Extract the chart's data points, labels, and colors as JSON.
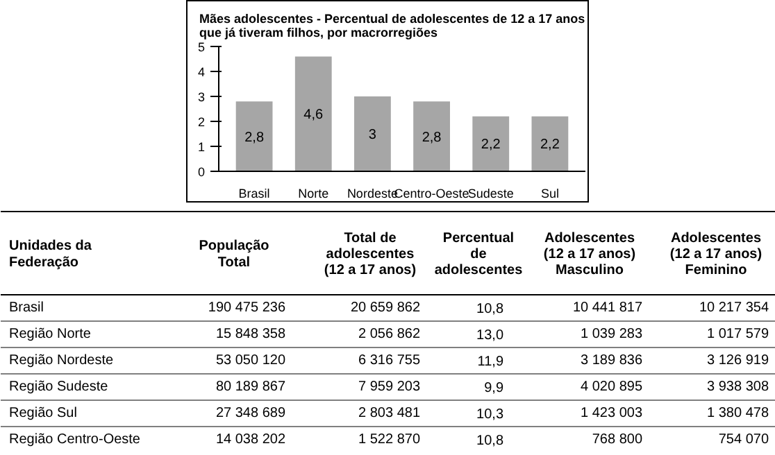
{
  "chart_data": [
    {
      "type": "bar",
      "title": "Mães adolescentes - Percentual de adolescentes de 12 a 17 anos\nque já tiveram filhos, por macrorregiões",
      "categories": [
        "Brasil",
        "Norte",
        "Nordeste",
        "Centro-Oeste",
        "Sudeste",
        "Sul"
      ],
      "values": [
        2.8,
        4.6,
        3,
        2.8,
        2.2,
        2.2
      ],
      "value_labels": [
        "2,8",
        "4,6",
        "3",
        "2,8",
        "2,2",
        "2,2"
      ],
      "color": "#a6a6a6",
      "ylim": [
        0,
        5
      ],
      "yticks": [
        0,
        1,
        2,
        3,
        4,
        5
      ],
      "grid": false
    },
    {
      "type": "other",
      "categories": [
        "Unidades da\nFederação",
        "População\nTotal",
        "Total de\nadolescentes\n(12 a 17 anos)",
        "Percentual\nde\nadolescentes",
        "Adolescentes\n(12 a 17 anos)\nMasculino",
        "Adolescentes\n(12 a 17 anos)\nFeminino"
      ],
      "cell_labels": [
        [
          "Brasil",
          "190 475 236",
          "20 659 862",
          "10,8",
          "10 441 817",
          "10 217 354"
        ],
        [
          "Região Norte",
          "15 848 358",
          "2 056 862",
          "13,0",
          "1 039 283",
          "1 017 579"
        ],
        [
          "Região Nordeste",
          "53 050 120",
          "6 316 755",
          "11,9",
          "3 189 836",
          "3 126 919"
        ],
        [
          "Região Sudeste",
          "80 189 867",
          "7 959 203",
          "9,9",
          "4 020 895",
          "3 938 308"
        ],
        [
          "Região Sul",
          "27 348 689",
          "2 803 481",
          "10,3",
          "1 423 003",
          "1 380 478"
        ],
        [
          "Região Centro-Oeste",
          "14 038 202",
          "1 522 870",
          "10,8",
          "768 800",
          "754 070"
        ]
      ]
    }
  ]
}
